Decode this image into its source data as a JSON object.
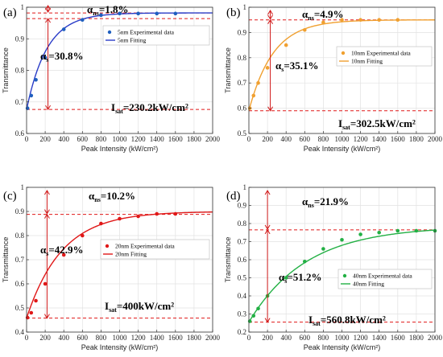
{
  "chart_data": [
    {
      "type": "scatter",
      "panel_label": "(a)",
      "xlabel": "Peak Intensity (kW/cm²)",
      "ylabel": "Transmittance",
      "xlim": [
        0,
        2000
      ],
      "ylim": [
        0.6,
        1.0
      ],
      "xticks": [
        0,
        200,
        400,
        600,
        800,
        1000,
        1200,
        1400,
        1600,
        1800,
        2000
      ],
      "yticks": [
        0.6,
        0.7,
        0.8,
        0.9,
        1.0
      ],
      "ytick_labels": [
        "0.6",
        "0.7",
        "0.8",
        "0.9",
        "1"
      ],
      "color": "#1f5fbf",
      "fit_color": "#2a3cc8",
      "grid": true,
      "legend_position": "right",
      "series": [
        {
          "name": "5nm Experimental data",
          "x": [
            10,
            50,
            100,
            200,
            400,
            600,
            800,
            1000,
            1200,
            1400,
            1600
          ],
          "y": [
            0.68,
            0.72,
            0.77,
            0.84,
            0.93,
            0.96,
            0.975,
            0.98,
            0.98,
            0.98,
            0.98
          ]
        },
        {
          "name": "5nm Fitting",
          "params": {
            "T0": 0.676,
            "Tmax": 0.982,
            "decay": 220
          }
        }
      ],
      "ref_lines": [
        0.676,
        0.964,
        0.982
      ],
      "annotations": {
        "alpha_ns": "=1.8%",
        "alpha_s": "=30.8%",
        "isat": "=230.2kW/cm²"
      }
    },
    {
      "type": "scatter",
      "panel_label": "(b)",
      "xlabel": "Peak Intensity (kW/cm²)",
      "ylabel": "Transmittance",
      "xlim": [
        0,
        2000
      ],
      "ylim": [
        0.5,
        1.0
      ],
      "xticks": [
        0,
        200,
        400,
        600,
        800,
        1000,
        1200,
        1400,
        1600,
        1800,
        2000
      ],
      "yticks": [
        0.5,
        0.6,
        0.7,
        0.8,
        0.9,
        1.0
      ],
      "ytick_labels": [
        "0.5",
        "0.6",
        "0.7",
        "0.8",
        "0.9",
        "1"
      ],
      "color": "#f0a030",
      "fit_color": "#f0a030",
      "grid": true,
      "legend_position": "right",
      "series": [
        {
          "name": "10nm Experimental data",
          "x": [
            10,
            50,
            100,
            200,
            400,
            600,
            800,
            1000,
            1200,
            1400,
            1600
          ],
          "y": [
            0.6,
            0.65,
            0.7,
            0.76,
            0.85,
            0.91,
            0.94,
            0.95,
            0.95,
            0.95,
            0.95
          ]
        },
        {
          "name": "10nm Fitting",
          "params": {
            "T0": 0.59,
            "Tmax": 0.95,
            "decay": 260
          }
        }
      ],
      "ref_lines": [
        0.59,
        0.95
      ],
      "annotations": {
        "alpha_ns": "=4.9%",
        "alpha_s": "=35.1%",
        "isat": "=302.5kW/cm²"
      }
    },
    {
      "type": "scatter",
      "panel_label": "(c)",
      "xlabel": "Peak Intensity (kW/cm²)",
      "ylabel": "Transmittance",
      "xlim": [
        0,
        2000
      ],
      "ylim": [
        0.4,
        1.0
      ],
      "xticks": [
        0,
        200,
        400,
        600,
        800,
        1000,
        1200,
        1400,
        1600,
        1800,
        2000
      ],
      "yticks": [
        0.4,
        0.5,
        0.6,
        0.7,
        0.8,
        0.9,
        1.0
      ],
      "ytick_labels": [
        "0.4",
        "0.5",
        "0.6",
        "0.7",
        "0.8",
        "0.9",
        "1"
      ],
      "color": "#e01818",
      "fit_color": "#e01818",
      "grid": true,
      "legend_position": "right",
      "series": [
        {
          "name": "20nm Experimental data",
          "x": [
            10,
            50,
            100,
            200,
            400,
            600,
            800,
            1000,
            1200,
            1400,
            1600
          ],
          "y": [
            0.46,
            0.48,
            0.53,
            0.6,
            0.72,
            0.8,
            0.85,
            0.87,
            0.88,
            0.89,
            0.89
          ]
        },
        {
          "name": "20nm Fitting",
          "params": {
            "T0": 0.458,
            "Tmax": 0.9,
            "decay": 380
          }
        }
      ],
      "ref_lines": [
        0.458,
        0.888
      ],
      "annotations": {
        "alpha_ns": "=10.2%",
        "alpha_s": "=42.9%",
        "isat": "=400kW/cm²"
      }
    },
    {
      "type": "scatter",
      "panel_label": "(d)",
      "xlabel": "Peak Intensity (kW/cm²)",
      "ylabel": "Transmittance",
      "xlim": [
        0,
        2000
      ],
      "ylim": [
        0.2,
        1.0
      ],
      "xticks": [
        0,
        200,
        400,
        600,
        800,
        1000,
        1200,
        1400,
        1600,
        1800,
        2000
      ],
      "yticks": [
        0.2,
        0.3,
        0.4,
        0.5,
        0.6,
        0.7,
        0.8,
        0.9,
        1.0
      ],
      "ytick_labels": [
        "0.2",
        "0.3",
        "0.4",
        "0.5",
        "0.6",
        "0.7",
        "0.8",
        "0.9",
        "1"
      ],
      "color": "#22b044",
      "fit_color": "#22b044",
      "grid": true,
      "legend_position": "right",
      "series": [
        {
          "name": "40nm Experimental data",
          "x": [
            10,
            50,
            100,
            200,
            400,
            600,
            800,
            1000,
            1200,
            1400,
            1600,
            1800,
            2000
          ],
          "y": [
            0.26,
            0.29,
            0.33,
            0.4,
            0.5,
            0.59,
            0.66,
            0.71,
            0.74,
            0.75,
            0.76,
            0.76,
            0.76
          ]
        },
        {
          "name": "40nm Fitting",
          "params": {
            "T0": 0.255,
            "Tmax": 0.785,
            "decay": 620
          }
        }
      ],
      "ref_lines": [
        0.255,
        0.765
      ],
      "annotations": {
        "alpha_ns": "=21.9%",
        "alpha_s": "=51.2%",
        "isat": "=560.8kW/cm²"
      }
    }
  ]
}
